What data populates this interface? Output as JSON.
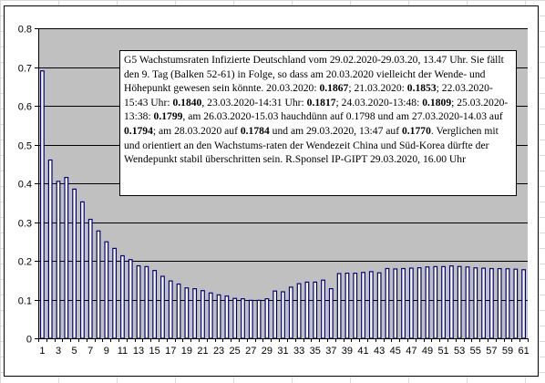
{
  "colors": {
    "plot_background": "#c0c0c0",
    "bar_fill": "#ffffff",
    "bar_edge": "#00007f",
    "gridline": "#000000",
    "sheet_grid": "#d9d9d9"
  },
  "annotation": {
    "parts": [
      {
        "text": "G5  Wachstumsraten Infizierte Deutschland vom 29.02.2020-29.03.20, 13.47 Uhr. Sie fällt den 9. Tag (Balken 52-61) in Folge, so dass am 20.03.2020 vielleicht der Wende- und Höhepunkt gewesen sein könnte.  20.03.2020: "
      },
      {
        "text": "0.1867",
        "bold": true
      },
      {
        "text": "; 21.03.2020: "
      },
      {
        "text": "0.1853",
        "bold": true
      },
      {
        "text": "; 22.03.2020-15:43 Uhr: "
      },
      {
        "text": "0.1840",
        "bold": true
      },
      {
        "text": ", 23.03.2020-14:31 Uhr: "
      },
      {
        "text": "0.1817",
        "bold": true
      },
      {
        "text": "; 24.03.2020-13:48: "
      },
      {
        "text": "0.1809",
        "bold": true
      },
      {
        "text": "; 25.03.2020-13:38: "
      },
      {
        "text": "0.1799",
        "bold": true
      },
      {
        "text": ", am 26.03.2020-15.03 hauchdünn auf 0.1798 und am 27.03.2020-14.03 auf "
      },
      {
        "text": "0.1794",
        "bold": true
      },
      {
        "text": "; am 28.03.2020 auf "
      },
      {
        "text": "0.1784",
        "bold": true
      },
      {
        "text": " und am 29.03.2020, 13:47 auf "
      },
      {
        "text": "0.1770",
        "bold": true
      },
      {
        "text": ". Verglichen mit und orientiert an den Wachstums-raten der Wendezeit China und Süd-Korea dürfte der Wendepunkt stabil überschritten sein. R.Sponsel IP-GIPT 29.03.2020, 16.00 Uhr"
      }
    ]
  },
  "chart_data": {
    "type": "bar",
    "title": "",
    "xlabel": "",
    "ylabel": "",
    "ylim": [
      0,
      0.8
    ],
    "yticks": [
      "0",
      "0.1",
      "0.2",
      "0.3",
      "0.4",
      "0.5",
      "0.6",
      "0.7",
      "0.8"
    ],
    "xtick_labels": [
      "1",
      "3",
      "5",
      "7",
      "9",
      "11",
      "13",
      "15",
      "17",
      "19",
      "21",
      "23",
      "25",
      "27",
      "29",
      "31",
      "33",
      "35",
      "37",
      "39",
      "41",
      "43",
      "45",
      "47",
      "49",
      "51",
      "53",
      "55",
      "57",
      "59",
      "61"
    ],
    "grid": "horizontal",
    "legend": "none",
    "categories": [
      1,
      2,
      3,
      4,
      5,
      6,
      7,
      8,
      9,
      10,
      11,
      12,
      13,
      14,
      15,
      16,
      17,
      18,
      19,
      20,
      21,
      22,
      23,
      24,
      25,
      26,
      27,
      28,
      29,
      30,
      31,
      32,
      33,
      34,
      35,
      36,
      37,
      38,
      39,
      40,
      41,
      42,
      43,
      44,
      45,
      46,
      47,
      48,
      49,
      50,
      51,
      52,
      53,
      54,
      55,
      56,
      57,
      58,
      59,
      60,
      61
    ],
    "values": [
      0.69,
      0.46,
      0.405,
      0.415,
      0.385,
      0.352,
      0.307,
      0.277,
      0.249,
      0.232,
      0.213,
      0.203,
      0.187,
      0.185,
      0.175,
      0.16,
      0.148,
      0.14,
      0.13,
      0.128,
      0.123,
      0.117,
      0.112,
      0.109,
      0.103,
      0.102,
      0.098,
      0.098,
      0.102,
      0.122,
      0.12,
      0.132,
      0.141,
      0.145,
      0.145,
      0.15,
      0.128,
      0.167,
      0.168,
      0.168,
      0.17,
      0.172,
      0.169,
      0.18,
      0.179,
      0.18,
      0.181,
      0.182,
      0.184,
      0.185,
      0.185,
      0.1867,
      0.1853,
      0.184,
      0.1817,
      0.1809,
      0.1799,
      0.1798,
      0.1794,
      0.1784,
      0.177
    ]
  }
}
